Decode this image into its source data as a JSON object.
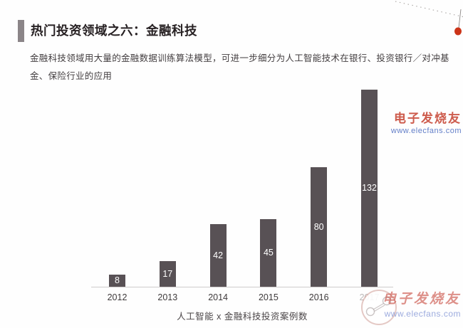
{
  "header": {
    "title": "热门投资领域之六：金融科技",
    "subtitle": "金融科技领域用大量的金融数据训练算法模型，可进一步细分为人工智能技术在银行、投资银行／对冲基金、保险行业的应用",
    "accent_color": "#8b8588"
  },
  "decoration": {
    "dot_color": "#cc3418",
    "line_color": "#b0acaa"
  },
  "chart_data": {
    "type": "bar",
    "categories": [
      "2012",
      "2013",
      "2014",
      "2015",
      "2016",
      "2017"
    ],
    "values": [
      8,
      17,
      42,
      45,
      80,
      132
    ],
    "title": "",
    "xlabel": "人工智能 x 金融科技投资案例数",
    "ylabel": "",
    "ylim": [
      0,
      140
    ],
    "grid": false,
    "legend": false,
    "bar_color": "#585155",
    "value_label_color": "#ffffff",
    "value_label_position": "inside-center",
    "last_tick_faded_by_watermark": true
  },
  "watermarks": {
    "mid_right": {
      "brand": "电子发烧友",
      "url": "www.elecfans.com"
    },
    "bottom_right": {
      "brand": "电子发烧友",
      "url": "www.elecfans.com"
    }
  }
}
